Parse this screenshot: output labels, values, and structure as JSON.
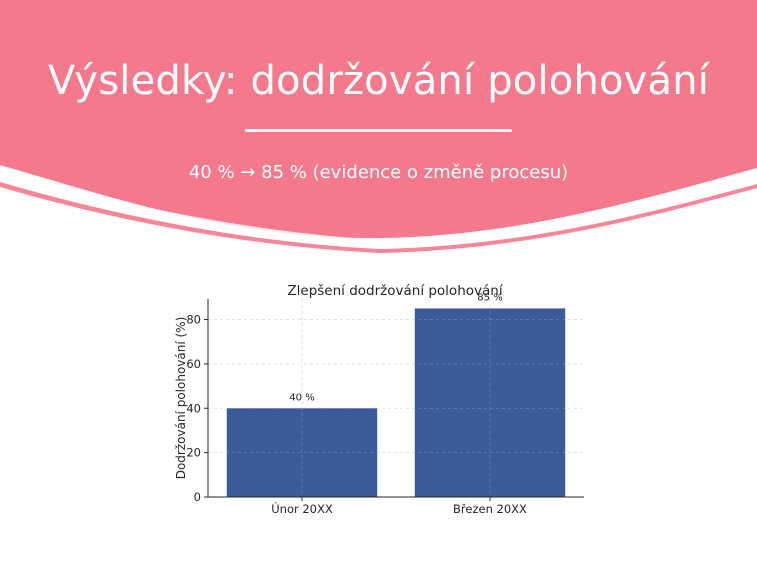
{
  "slide": {
    "title": "Výsledky: dodržování polohování",
    "subtitle": "40 % → 85 % (evidence o změně procesu)"
  },
  "colors": {
    "header": "#F5798D",
    "bar": "#3A5A99",
    "grid": "#CFCFCF",
    "axis": "#262626"
  },
  "chart_data": {
    "type": "bar",
    "title": "Zlepšení dodržování polohování",
    "xlabel": "",
    "ylabel": "Dodržování polohování (%)",
    "categories": [
      "Únor 20XX",
      "Březen 20XX"
    ],
    "values": [
      40,
      85
    ],
    "data_labels": [
      "40 %",
      "85 %"
    ],
    "yticks": [
      0,
      20,
      40,
      60,
      80
    ],
    "ylim": [
      0,
      89.25
    ],
    "grid": true
  }
}
